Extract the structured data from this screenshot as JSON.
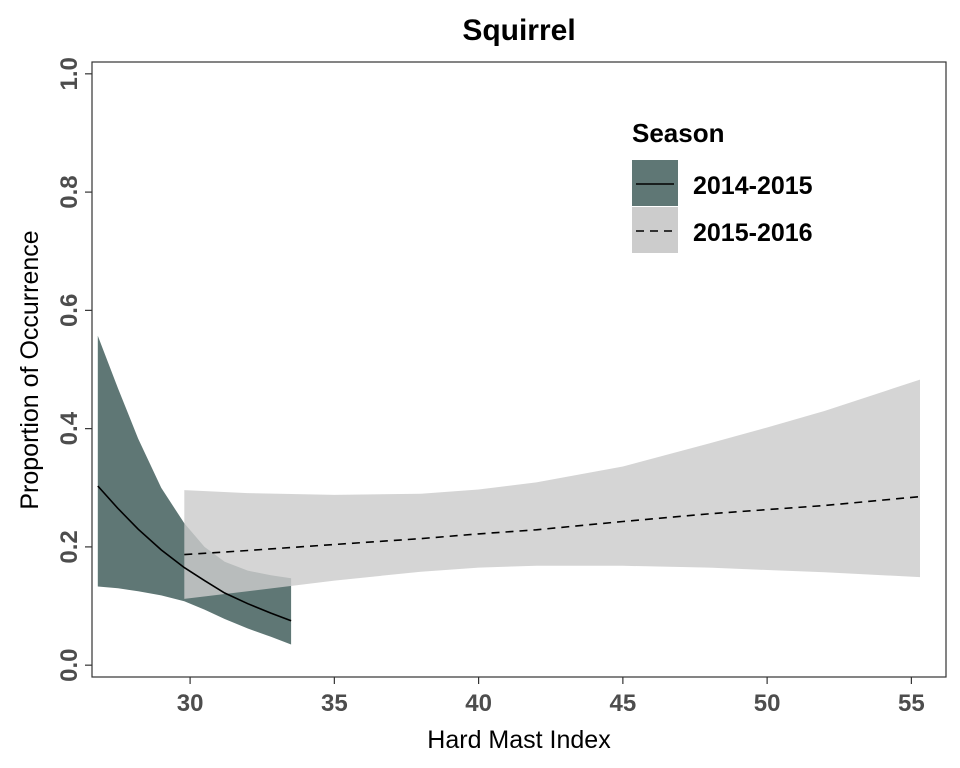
{
  "chart_data": {
    "type": "line",
    "title": "Squirrel",
    "xlabel": "Hard Mast Index",
    "ylabel": "Proportion of Occurrence",
    "xlim": [
      26.6,
      56.2
    ],
    "ylim": [
      -0.02,
      1.02
    ],
    "x_ticks": [
      30,
      35,
      40,
      45,
      50,
      55
    ],
    "x_tick_labels": [
      "30",
      "35",
      "40",
      "45",
      "50",
      "55"
    ],
    "y_ticks": [
      0,
      0.2,
      0.4,
      0.6,
      0.8,
      1.0
    ],
    "y_tick_labels": [
      "0.0",
      "0.2",
      "0.4",
      "0.6",
      "0.8",
      "1.0"
    ],
    "grid": false,
    "legend": {
      "title": "Season",
      "position": "top-right",
      "entries": [
        "2014-2015",
        "2015-2016"
      ]
    },
    "series": [
      {
        "name": "2014-2015",
        "line_style": "solid",
        "line_color": "#000000",
        "ribbon_color": "#5f7775",
        "x": [
          26.8,
          27.5,
          28.2,
          29.0,
          29.8,
          30.5,
          31.2,
          32.0,
          32.8,
          33.5
        ],
        "y": [
          0.303,
          0.265,
          0.23,
          0.195,
          0.165,
          0.143,
          0.122,
          0.104,
          0.088,
          0.075
        ],
        "lower": [
          0.133,
          0.13,
          0.125,
          0.118,
          0.108,
          0.094,
          0.078,
          0.062,
          0.048,
          0.035
        ],
        "upper": [
          0.557,
          0.468,
          0.383,
          0.3,
          0.24,
          0.2,
          0.175,
          0.16,
          0.152,
          0.147
        ]
      },
      {
        "name": "2015-2016",
        "line_style": "dashed",
        "line_color": "#000000",
        "ribbon_color": "#cccccc",
        "x": [
          29.8,
          32.0,
          35.0,
          38.0,
          40.0,
          42.0,
          45.0,
          48.0,
          50.0,
          52.0,
          55.3
        ],
        "y": [
          0.187,
          0.194,
          0.204,
          0.214,
          0.222,
          0.229,
          0.243,
          0.256,
          0.263,
          0.27,
          0.285
        ],
        "lower": [
          0.112,
          0.125,
          0.143,
          0.158,
          0.165,
          0.168,
          0.168,
          0.165,
          0.161,
          0.157,
          0.149
        ],
        "upper": [
          0.296,
          0.291,
          0.288,
          0.29,
          0.297,
          0.309,
          0.336,
          0.375,
          0.402,
          0.43,
          0.483
        ]
      }
    ]
  }
}
